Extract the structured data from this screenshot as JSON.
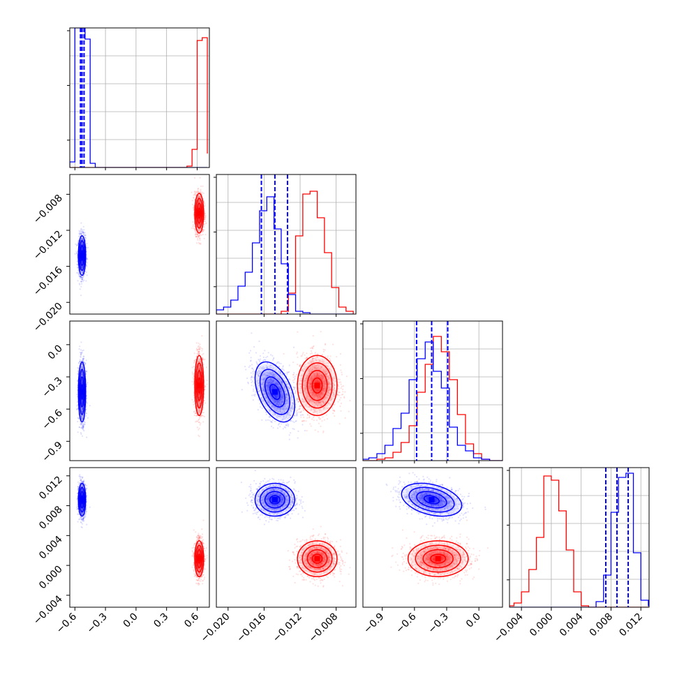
{
  "chart_data": {
    "type": "corner",
    "parameters": [
      {
        "index": 0,
        "range": [
          -0.65,
          0.72
        ],
        "ticks": [
          -0.6,
          -0.3,
          0.0,
          0.3,
          0.6
        ],
        "tick_labels": [
          "−0.6",
          "−0.3",
          "0.0",
          "0.3",
          "0.6"
        ]
      },
      {
        "index": 1,
        "range": [
          -0.0213,
          -0.0058
        ],
        "ticks": [
          -0.02,
          -0.016,
          -0.012,
          -0.008
        ],
        "tick_labels": [
          "−0.020",
          "−0.016",
          "−0.012",
          "−0.008"
        ]
      },
      {
        "index": 2,
        "range": [
          -1.08,
          0.22
        ],
        "ticks": [
          -0.9,
          -0.6,
          -0.3,
          0.0
        ],
        "tick_labels": [
          "−0.9",
          "−0.6",
          "−0.3",
          "0.0"
        ]
      },
      {
        "index": 3,
        "range": [
          -0.0056,
          0.0131
        ],
        "ticks": [
          -0.004,
          0.0,
          0.004,
          0.008,
          0.012
        ],
        "tick_labels": [
          "−0.004",
          "0.000",
          "0.004",
          "0.008",
          "0.012"
        ]
      }
    ],
    "series": [
      {
        "color": "#0000ff",
        "means": [
          -0.53,
          -0.0148,
          -0.44,
          0.0088
        ],
        "sds": [
          0.018,
          0.0011,
          0.14,
          0.0011
        ],
        "quantiles": [
          [
            -0.545,
            -0.53,
            -0.51
          ],
          [
            -0.0163,
            -0.0148,
            -0.0134
          ],
          [
            -0.58,
            -0.44,
            -0.29
          ],
          [
            0.0073,
            0.0088,
            0.0103
          ]
        ],
        "correlations": {
          "1-2": -0.45,
          "2-3": -0.35
        }
      },
      {
        "color": "#ff0000",
        "means": [
          0.62,
          -0.0101,
          -0.38,
          0.0009
        ],
        "sds": [
          0.022,
          0.0011,
          0.14,
          0.0012
        ],
        "quantiles": null,
        "correlations": {}
      }
    ],
    "histograms": [
      {
        "bin_edges": [
          -0.65,
          -0.6,
          -0.55,
          -0.5,
          -0.45,
          -0.4,
          -0.35,
          -0.3,
          -0.25,
          -0.2,
          -0.15,
          -0.1,
          -0.05,
          0.0,
          0.05,
          0.1,
          0.15,
          0.2,
          0.25,
          0.3,
          0.35,
          0.4,
          0.45,
          0.5,
          0.55,
          0.6,
          0.65,
          0.7
        ],
        "blue": [
          0.04,
          1.0,
          1.0,
          0.92,
          0.03,
          0.0,
          0,
          0,
          0,
          0,
          0,
          0,
          0,
          0,
          0,
          0,
          0,
          0,
          0,
          0,
          0,
          0,
          0,
          0,
          0,
          0,
          0
        ],
        "red": [
          0,
          0,
          0,
          0,
          0,
          0,
          0,
          0,
          0,
          0,
          0,
          0,
          0,
          0,
          0,
          0,
          0,
          0,
          0,
          0,
          0,
          0,
          0.0,
          0.01,
          0.13,
          0.91,
          0.93,
          0.1
        ]
      },
      {
        "bin_edges": [
          -0.0213,
          -0.0205,
          -0.0197,
          -0.0189,
          -0.0181,
          -0.0173,
          -0.0165,
          -0.0157,
          -0.0149,
          -0.0141,
          -0.0133,
          -0.0125,
          -0.0117,
          -0.0109,
          -0.0101,
          -0.0093,
          -0.0085,
          -0.0077,
          -0.0069,
          -0.0061
        ],
        "blue": [
          0.03,
          0.05,
          0.1,
          0.2,
          0.3,
          0.51,
          0.74,
          0.84,
          0.61,
          0.36,
          0.14,
          0.02,
          0.01,
          0,
          0,
          0,
          0,
          0,
          0
        ],
        "red": [
          0,
          0,
          0,
          0,
          0,
          0,
          0,
          0,
          0,
          0.02,
          0.15,
          0.56,
          0.86,
          0.88,
          0.69,
          0.44,
          0.19,
          0.05,
          0.02
        ]
      },
      {
        "bin_edges": [
          -1.1,
          -1.025,
          -0.95,
          -0.875,
          -0.8,
          -0.725,
          -0.65,
          -0.575,
          -0.5,
          -0.425,
          -0.35,
          -0.275,
          -0.2,
          -0.125,
          -0.05,
          0.025,
          0.1,
          0.175,
          0.25
        ],
        "blue": [
          0.01,
          0.02,
          0.05,
          0.11,
          0.23,
          0.34,
          0.58,
          0.73,
          0.85,
          0.64,
          0.52,
          0.24,
          0.11,
          0.07,
          0.02,
          0.01,
          0,
          0
        ],
        "red": [
          0,
          0.0,
          0.01,
          0.02,
          0.06,
          0.13,
          0.25,
          0.49,
          0.69,
          0.89,
          0.78,
          0.58,
          0.33,
          0.12,
          0.05,
          0.01,
          0.0,
          0
        ]
      },
      {
        "bin_edges": [
          -0.006,
          -0.005,
          -0.004,
          -0.003,
          -0.002,
          -0.001,
          0.0,
          0.001,
          0.002,
          0.003,
          0.004,
          0.005,
          0.006,
          0.007,
          0.008,
          0.009,
          0.01,
          0.011,
          0.012,
          0.013,
          0.014
        ],
        "blue": [
          0,
          0,
          0,
          0,
          0,
          0,
          0,
          0,
          0,
          0,
          0,
          0.0,
          0.04,
          0.23,
          0.68,
          0.93,
          0.96,
          0.39,
          0.05,
          0.01
        ],
        "red": [
          0.01,
          0.03,
          0.11,
          0.27,
          0.5,
          0.94,
          0.91,
          0.69,
          0.41,
          0.11,
          0.01,
          0.0,
          0,
          0,
          0,
          0,
          0,
          0,
          0
        ]
      }
    ],
    "grid": true,
    "title": "",
    "legend": null
  }
}
